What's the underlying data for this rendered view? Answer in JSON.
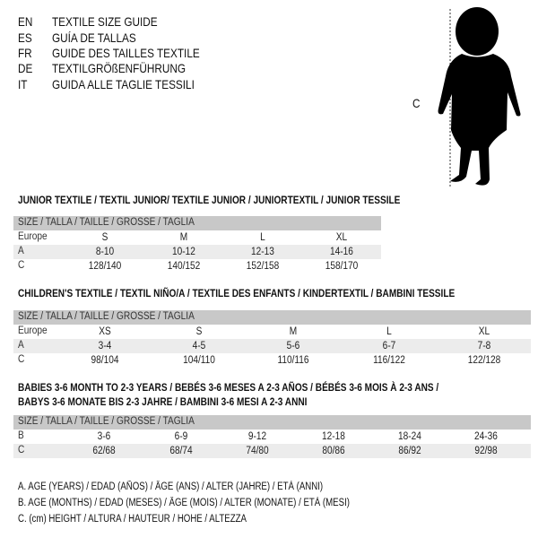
{
  "header": [
    {
      "code": "EN",
      "text": "TEXTILE SIZE GUIDE"
    },
    {
      "code": "ES",
      "text": "GUÍA DE TALLAS"
    },
    {
      "code": "FR",
      "text": "GUIDE DES TAILLES TEXTILE"
    },
    {
      "code": "DE",
      "text": "TEXTILGRÖßENFÜHRUNG"
    },
    {
      "code": "IT",
      "text": "GUIDA ALLE TAGLIE TESSILI"
    }
  ],
  "figure": {
    "label": "C"
  },
  "tables": [
    {
      "title": "JUNIOR TEXTILE / TEXTIL JUNIOR/ TEXTILE JUNIOR / JUNIORTEXTIL / JUNIOR TESSILE",
      "header": "SIZE / TALLA / TAILLE / GRÖSSE / TAGLIA",
      "rows": [
        {
          "label": "Europe",
          "cells": [
            "S",
            "M",
            "L",
            "XL"
          ]
        },
        {
          "label": "A",
          "cells": [
            "8-10",
            "10-12",
            "12-13",
            "14-16"
          ]
        },
        {
          "label": "C",
          "cells": [
            "128/140",
            "140/152",
            "152/158",
            "158/170"
          ]
        }
      ]
    },
    {
      "title": "CHILDREN'S TEXTILE / TEXTIL NIÑO/A / TEXTILE DES ENFANTS / KINDERTEXTIL / BAMBINI TESSILE",
      "header": "SIZE / TALLA / TAILLE / GRÖSSE / TAGLIA",
      "rows": [
        {
          "label": "Europe",
          "cells": [
            "XS",
            "S",
            "M",
            "L",
            "XL"
          ]
        },
        {
          "label": "A",
          "cells": [
            "3-4",
            "4-5",
            "5-6",
            "6-7",
            "7-8"
          ]
        },
        {
          "label": "C",
          "cells": [
            "98/104",
            "104/110",
            "110/116",
            "116/122",
            "122/128"
          ]
        }
      ]
    },
    {
      "title": "BABIES 3-6 MONTH TO 2-3 YEARS / BEBÉS 3-6 MESES A 2-3 AÑOS / BÉBÉS 3-6 MOIS À 2-3 ANS /",
      "title2": "BABYS 3-6 MONATE BIS 2-3 JAHRE / BAMBINI 3-6 MESI A 2-3 ANNI",
      "header": "SIZE / TALLA / TAILLE / GRÖSSE / TAGLIA",
      "rows": [
        {
          "label": "B",
          "cells": [
            "3-6",
            "6-9",
            "9-12",
            "12-18",
            "18-24",
            "24-36"
          ]
        },
        {
          "label": "C",
          "cells": [
            "62/68",
            "68/74",
            "74/80",
            "80/86",
            "86/92",
            "92/98"
          ]
        }
      ]
    }
  ],
  "legend": [
    "A. AGE (YEARS) / EDAD (AÑOS) / ÂGE (ANS) / ALTER (JAHRE) / ETÀ (ANNI)",
    "B. AGE (MONTHS) / EDAD (MESES) / ÂGE (MOIS) / ALTER (MONATE) / ETÀ (MESI)",
    "C. (cm) HEIGHT / ALTURA / HAUTEUR / HÖHE / ALTEZZA"
  ]
}
